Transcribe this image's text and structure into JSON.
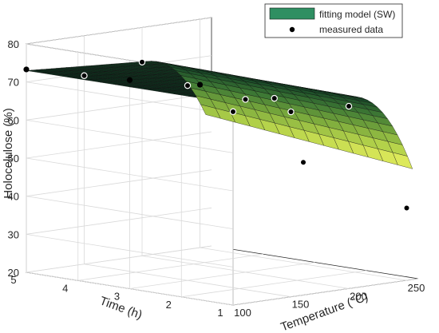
{
  "chart_data": {
    "type": "surface3d",
    "xlabel": "Temperature (°C)",
    "ylabel": "Time (h)",
    "zlabel": "Holocelulose (%)",
    "x_ticks": [
      100,
      150,
      200,
      250
    ],
    "y_ticks": [
      1,
      2,
      3,
      4,
      5
    ],
    "z_ticks": [
      20,
      30,
      40,
      50,
      60,
      70,
      80
    ],
    "xlim": [
      100,
      260
    ],
    "ylim": [
      1,
      5
    ],
    "zlim": [
      20,
      80
    ],
    "grid": true,
    "legend_position": "top-right",
    "legend": [
      {
        "label": "fitting model (SW)",
        "marker": "patch",
        "color": "#2f8f62"
      },
      {
        "label": "measured data",
        "marker": "dot",
        "color": "#000000"
      }
    ],
    "surface": {
      "name": "fitting model (SW)",
      "colormap": [
        "#0b2a1a",
        "#1a4a28",
        "#3f7a35",
        "#78a83c",
        "#b4d24a",
        "#e8ef5e"
      ],
      "value_range": [
        50,
        73
      ]
    },
    "measured_data": {
      "name": "measured data",
      "points": [
        {
          "temperature": 100,
          "time": 5,
          "holocellulose": 73.3
        },
        {
          "temperature": 100,
          "time": 3,
          "holocellulose": 74.8
        },
        {
          "temperature": 100,
          "time": 1,
          "holocellulose": 70.8
        },
        {
          "temperature": 150,
          "time": 5,
          "holocellulose": 69.5
        },
        {
          "temperature": 150,
          "time": 3,
          "holocellulose": 71.2
        },
        {
          "temperature": 150,
          "time": 1,
          "holocellulose": 68.6
        },
        {
          "temperature": 200,
          "time": 5,
          "holocellulose": 70.9
        },
        {
          "temperature": 200,
          "time": 3,
          "holocellulose": 65.4
        },
        {
          "temperature": 200,
          "time": 1,
          "holocellulose": 67.9
        },
        {
          "temperature": 225,
          "time": 3,
          "holocellulose": 64.6
        },
        {
          "temperature": 250,
          "time": 5,
          "holocellulose": 62.8
        },
        {
          "temperature": 250,
          "time": 3,
          "holocellulose": 46.7
        },
        {
          "temperature": 250,
          "time": 1,
          "holocellulose": 39.0
        }
      ]
    }
  }
}
